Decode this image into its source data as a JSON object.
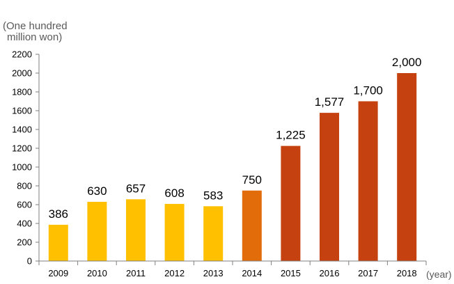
{
  "chart_data": {
    "type": "bar",
    "title": "",
    "ylabel_lines": [
      "(One hundred",
      "million won)"
    ],
    "xlabel": "(year)",
    "categories": [
      "2009",
      "2010",
      "2011",
      "2012",
      "2013",
      "2014",
      "2015",
      "2016",
      "2017",
      "2018"
    ],
    "values": [
      386,
      630,
      657,
      608,
      583,
      750,
      1225,
      1577,
      1700,
      2000
    ],
    "data_labels": [
      "386",
      "630",
      "657",
      "608",
      "583",
      "750",
      "1,225",
      "1,577",
      "1,700",
      "2,000"
    ],
    "yticks": [
      0,
      200,
      400,
      600,
      800,
      1000,
      1200,
      1400,
      1600,
      1800,
      2000,
      2200
    ],
    "ylim": [
      0,
      2200
    ],
    "grid": false,
    "legend": "none",
    "bar_colors": [
      "#FFC000",
      "#FFC000",
      "#FFC000",
      "#FFC000",
      "#FFC000",
      "#E36C0A",
      "#C5410F",
      "#C5410F",
      "#C5410F",
      "#C5410F"
    ],
    "axis_color": "#7F7F7F"
  }
}
